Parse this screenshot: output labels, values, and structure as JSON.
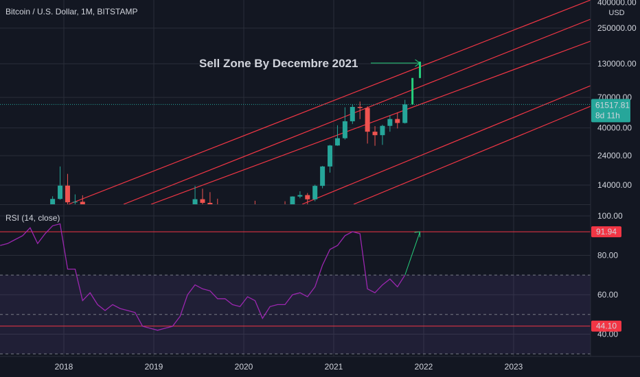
{
  "header": {
    "symbol": "Bitcoin / U.S. Dollar, 1M, BITSTAMP"
  },
  "annotation": {
    "text": "Sell Zone By Decembre 2021"
  },
  "colors": {
    "up": "#26a69a",
    "down": "#ef5350",
    "channel": "#f23645",
    "rsi": "#9c27b0",
    "arrow": "#26d07c",
    "bg": "#131722",
    "grid": "#2a2e39"
  },
  "chart_data": [
    {
      "type": "candlestick",
      "title": "Bitcoin / U.S. Dollar, 1M, BITSTAMP",
      "currency": "USD",
      "ytick_labels": [
        "400000.00",
        "250000.00",
        "130000.00",
        "70000.00",
        "40000.00",
        "24000.00",
        "14000.00"
      ],
      "ytick_values": [
        400000,
        250000,
        130000,
        70000,
        40000,
        24000,
        14000
      ],
      "y_scale": "log",
      "current_price": {
        "value": "61517.81",
        "countdown": "8d 11h"
      },
      "xtick_labels": [
        "2018",
        "2019",
        "2020",
        "2021",
        "2022",
        "2023"
      ],
      "candles": [
        {
          "date": "2017-11",
          "open": 6450,
          "high": 11400,
          "low": 5500,
          "close": 10850
        },
        {
          "date": "2017-12",
          "open": 10850,
          "high": 19700,
          "low": 10700,
          "close": 13860
        },
        {
          "date": "2018-01",
          "open": 13860,
          "high": 17200,
          "low": 9200,
          "close": 10200
        },
        {
          "date": "2018-02",
          "open": 10200,
          "high": 11800,
          "low": 6000,
          "close": 10300
        },
        {
          "date": "2018-03",
          "open": 10300,
          "high": 11600,
          "low": 6600,
          "close": 6900
        },
        {
          "date": "2019-05",
          "open": 5300,
          "high": 9100,
          "low": 5200,
          "close": 8550
        },
        {
          "date": "2019-06",
          "open": 8550,
          "high": 13800,
          "low": 7500,
          "close": 10800
        },
        {
          "date": "2019-07",
          "open": 10800,
          "high": 13100,
          "low": 9100,
          "close": 10100
        },
        {
          "date": "2019-08",
          "open": 10100,
          "high": 12300,
          "low": 9400,
          "close": 9600
        },
        {
          "date": "2019-09",
          "open": 9600,
          "high": 10900,
          "low": 7800,
          "close": 8300
        },
        {
          "date": "2020-02",
          "open": 9350,
          "high": 10500,
          "low": 8500,
          "close": 8600
        },
        {
          "date": "2020-06",
          "open": 9450,
          "high": 10400,
          "low": 8900,
          "close": 9140
        },
        {
          "date": "2020-07",
          "open": 9140,
          "high": 11400,
          "low": 8900,
          "close": 11350
        },
        {
          "date": "2020-08",
          "open": 11350,
          "high": 12500,
          "low": 11000,
          "close": 11650
        },
        {
          "date": "2020-09",
          "open": 11650,
          "high": 12100,
          "low": 9800,
          "close": 10780
        },
        {
          "date": "2020-10",
          "open": 10780,
          "high": 14100,
          "low": 10400,
          "close": 13800
        },
        {
          "date": "2020-11",
          "open": 13800,
          "high": 19900,
          "low": 13200,
          "close": 19700
        },
        {
          "date": "2020-12",
          "open": 19700,
          "high": 29300,
          "low": 17600,
          "close": 28950
        },
        {
          "date": "2021-01",
          "open": 28950,
          "high": 42000,
          "low": 28800,
          "close": 33100
        },
        {
          "date": "2021-02",
          "open": 33100,
          "high": 58400,
          "low": 32300,
          "close": 45200
        },
        {
          "date": "2021-03",
          "open": 45200,
          "high": 61800,
          "low": 43000,
          "close": 58800
        },
        {
          "date": "2021-04",
          "open": 58800,
          "high": 64900,
          "low": 47000,
          "close": 57700
        },
        {
          "date": "2021-05",
          "open": 57700,
          "high": 59500,
          "low": 30000,
          "close": 37300
        },
        {
          "date": "2021-06",
          "open": 37300,
          "high": 41300,
          "low": 28800,
          "close": 35000
        },
        {
          "date": "2021-07",
          "open": 35000,
          "high": 42400,
          "low": 29300,
          "close": 41500
        },
        {
          "date": "2021-08",
          "open": 41500,
          "high": 50500,
          "low": 37300,
          "close": 47100
        },
        {
          "date": "2021-09",
          "open": 47100,
          "high": 52900,
          "low": 39600,
          "close": 43800
        },
        {
          "date": "2021-10",
          "open": 43800,
          "high": 67000,
          "low": 43300,
          "close": 61517.81
        },
        {
          "date": "2021-11",
          "open": 61517.81,
          "high": 100000,
          "low": 61517.81,
          "close": 100000
        },
        {
          "date": "2021-12",
          "open": 100000,
          "high": 135000,
          "low": 100000,
          "close": 135000
        }
      ]
    },
    {
      "type": "line",
      "title": "RSI (14, close)",
      "ytick_labels": [
        "100.00",
        "80.00",
        "60.00",
        "40.00"
      ],
      "ytick_values": [
        100,
        80,
        60,
        40
      ],
      "markers": [
        "91.94",
        "44.10"
      ],
      "marker_values": [
        91.94,
        44.1
      ],
      "band": [
        30,
        70
      ],
      "series": [
        {
          "x": [
            "2017-04",
            "2017-05",
            "2017-06",
            "2017-07",
            "2017-08",
            "2017-09",
            "2017-10",
            "2017-11",
            "2017-12",
            "2018-01",
            "2018-02",
            "2018-03",
            "2018-04",
            "2018-05",
            "2018-06",
            "2018-07",
            "2018-08",
            "2018-09",
            "2018-10",
            "2018-11",
            "2018-12",
            "2019-01",
            "2019-02",
            "2019-03",
            "2019-04",
            "2019-05",
            "2019-06",
            "2019-07",
            "2019-08",
            "2019-09",
            "2019-10",
            "2019-11",
            "2019-12",
            "2020-01",
            "2020-02",
            "2020-03",
            "2020-04",
            "2020-05",
            "2020-06",
            "2020-07",
            "2020-08",
            "2020-09",
            "2020-10",
            "2020-11",
            "2020-12",
            "2021-01",
            "2021-02",
            "2021-03",
            "2021-04",
            "2021-05",
            "2021-06",
            "2021-07",
            "2021-08",
            "2021-09",
            "2021-10"
          ],
          "y": [
            85,
            86,
            88,
            90,
            94,
            86,
            91,
            95,
            96,
            73,
            73,
            57,
            61,
            55,
            52,
            55,
            53,
            52,
            51,
            44,
            43,
            42,
            43,
            44,
            49,
            60,
            65,
            63,
            62,
            58,
            58,
            55,
            54,
            59,
            57,
            48,
            54,
            55,
            55,
            60,
            61,
            59,
            64,
            75,
            83,
            85,
            90,
            92,
            91,
            63,
            61,
            65,
            68,
            64,
            70
          ]
        },
        {
          "x": [
            "2021-10",
            "2021-12"
          ],
          "y": [
            70,
            91.94
          ]
        }
      ]
    }
  ]
}
